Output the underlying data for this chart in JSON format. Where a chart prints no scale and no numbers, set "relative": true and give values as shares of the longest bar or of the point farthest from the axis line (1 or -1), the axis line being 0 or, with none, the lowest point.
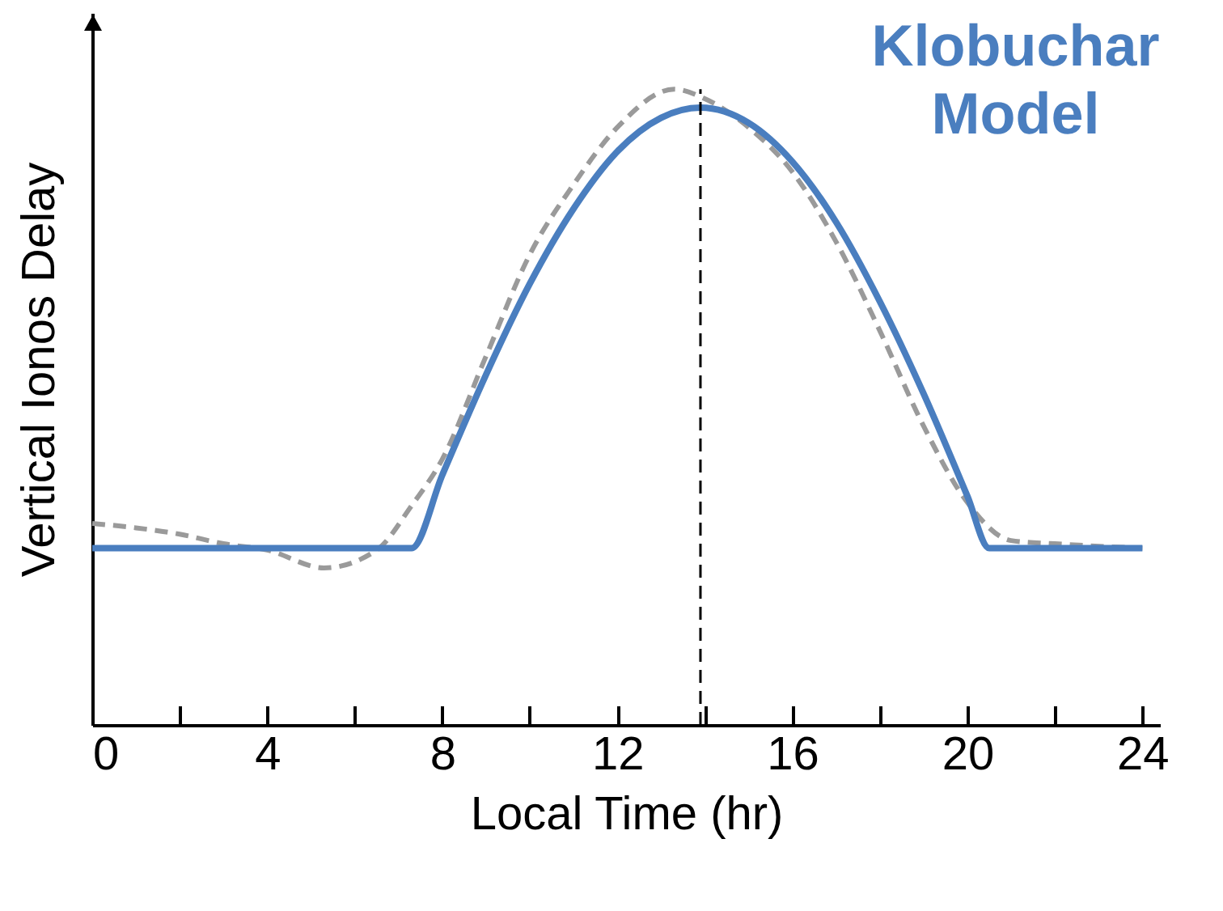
{
  "chart_data": {
    "type": "line",
    "relative": true,
    "xlabel": "Local Time (hr)",
    "ylabel": "Vertical Ionos Delay",
    "xlim": [
      0,
      24.4
    ],
    "xticks": [
      0,
      {
        "value": 2,
        "label": null
      },
      4,
      {
        "value": 6,
        "label": null
      },
      8,
      {
        "value": 10,
        "label": null
      },
      12,
      {
        "value": 14,
        "label": null
      },
      16,
      {
        "value": 18,
        "label": null
      },
      20,
      {
        "value": 22,
        "label": null
      },
      24
    ],
    "legend": false,
    "marker": "none",
    "grid": false,
    "ref_lines": [
      {
        "axis": "x",
        "value": 13.9,
        "color": "#000000",
        "line_style": "dashed"
      }
    ],
    "series": [
      {
        "color": "#9a9a9a",
        "line_style": "dashed",
        "x": [
          0,
          1,
          2,
          3,
          4,
          5.3,
          6.5,
          7.3,
          8,
          9,
          10,
          11,
          12,
          13.3,
          14,
          15,
          16,
          17,
          18,
          19,
          20,
          21,
          22,
          24
        ],
        "values": [
          0.317,
          0.31,
          0.3,
          0.285,
          0.275,
          0.247,
          0.275,
          0.345,
          0.418,
          0.58,
          0.74,
          0.85,
          0.94,
          1.0,
          0.985,
          0.94,
          0.87,
          0.76,
          0.62,
          0.47,
          0.35,
          0.29,
          0.285,
          0.278
        ]
      },
      {
        "name": "Klobuchar Model",
        "color": "#4a7ebf",
        "line_style": "solid",
        "x": [
          0,
          7.3,
          8,
          9,
          10,
          11,
          12,
          13,
          13.9,
          15,
          16,
          17,
          18,
          19,
          20,
          20.5,
          24
        ],
        "values": [
          0.278,
          0.278,
          0.393,
          0.551,
          0.694,
          0.812,
          0.902,
          0.955,
          0.971,
          0.947,
          0.886,
          0.791,
          0.666,
          0.521,
          0.36,
          0.278,
          0.278
        ]
      }
    ]
  }
}
